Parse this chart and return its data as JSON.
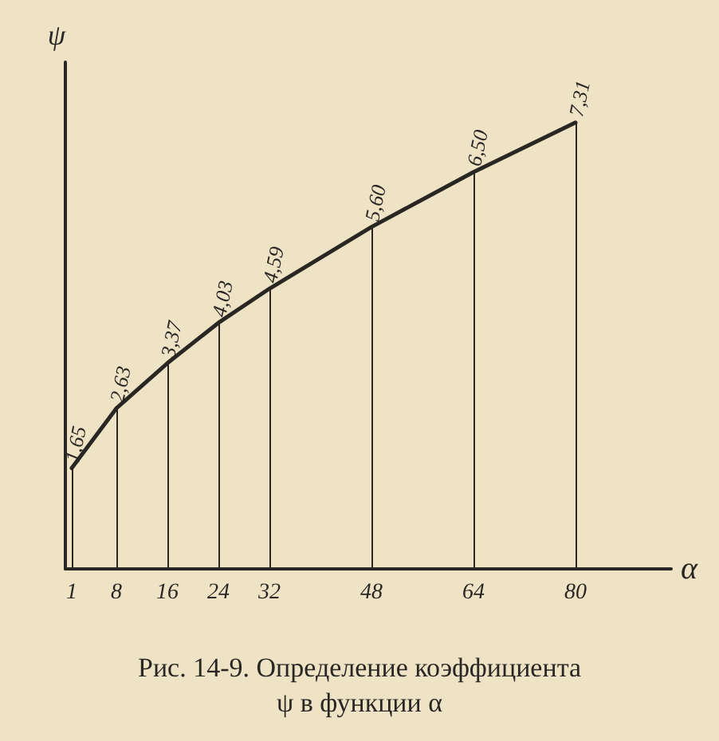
{
  "chart_data": {
    "type": "line",
    "title": "Рис. 14-9. Определение коэффициента\nψ в функции α",
    "xlabel": "α",
    "ylabel": "ψ",
    "x": [
      1,
      8,
      16,
      24,
      32,
      48,
      64,
      80
    ],
    "series": [
      {
        "color": "#2a2623",
        "values": [
          1.65,
          2.63,
          3.37,
          4.03,
          4.59,
          5.6,
          6.5,
          7.31
        ],
        "value_labels": [
          "1,65",
          "2,63",
          "3,37",
          "4,03",
          "4,59",
          "5,60",
          "6,50",
          "7,31"
        ]
      }
    ],
    "xlim": [
      0,
      95
    ],
    "xticks": [
      1,
      8,
      16,
      24,
      32,
      48,
      64,
      80
    ],
    "ylim": [
      0,
      8.3
    ],
    "tick_labels": "x",
    "grid": "x",
    "marker": "none",
    "line_style": "solid"
  }
}
